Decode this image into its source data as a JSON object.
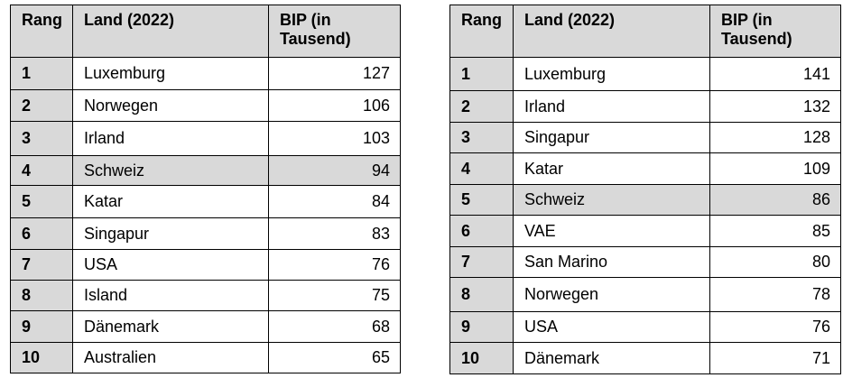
{
  "tables": [
    {
      "headers": {
        "rank": "Rang",
        "country": "Land (2022)",
        "gdp_line1": "BIP (in",
        "gdp_line2": "Tausend)"
      },
      "highlight_country": "Schweiz",
      "rows": [
        {
          "rank": "1",
          "country": "Luxemburg",
          "gdp": "127"
        },
        {
          "rank": "2",
          "country": "Norwegen",
          "gdp": "106"
        },
        {
          "rank": "3",
          "country": "Irland",
          "gdp": "103"
        },
        {
          "rank": "4",
          "country": "Schweiz",
          "gdp": "94"
        },
        {
          "rank": "5",
          "country": "Katar",
          "gdp": "84"
        },
        {
          "rank": "6",
          "country": "Singapur",
          "gdp": "83"
        },
        {
          "rank": "7",
          "country": "USA",
          "gdp": "76"
        },
        {
          "rank": "8",
          "country": "Island",
          "gdp": "75"
        },
        {
          "rank": "9",
          "country": "Dänemark",
          "gdp": "68"
        },
        {
          "rank": "10",
          "country": "Australien",
          "gdp": "65"
        }
      ]
    },
    {
      "headers": {
        "rank": "Rang",
        "country": "Land (2022)",
        "gdp_line1": "BIP (in",
        "gdp_line2": "Tausend)"
      },
      "highlight_country": "Schweiz",
      "rows": [
        {
          "rank": "1",
          "country": "Luxemburg",
          "gdp": "141"
        },
        {
          "rank": "2",
          "country": "Irland",
          "gdp": "132"
        },
        {
          "rank": "3",
          "country": "Singapur",
          "gdp": "128"
        },
        {
          "rank": "4",
          "country": "Katar",
          "gdp": "109"
        },
        {
          "rank": "5",
          "country": "Schweiz",
          "gdp": "86"
        },
        {
          "rank": "6",
          "country": "VAE",
          "gdp": "85"
        },
        {
          "rank": "7",
          "country": "San Marino",
          "gdp": "80"
        },
        {
          "rank": "8",
          "country": "Norwegen",
          "gdp": "78"
        },
        {
          "rank": "9",
          "country": "USA",
          "gdp": "76"
        },
        {
          "rank": "10",
          "country": "Dänemark",
          "gdp": "71"
        }
      ]
    }
  ],
  "colors": {
    "header_fill": "#d9d9d9",
    "highlight_fill": "#d9d9d9",
    "border": "#000000",
    "background": "#ffffff"
  }
}
